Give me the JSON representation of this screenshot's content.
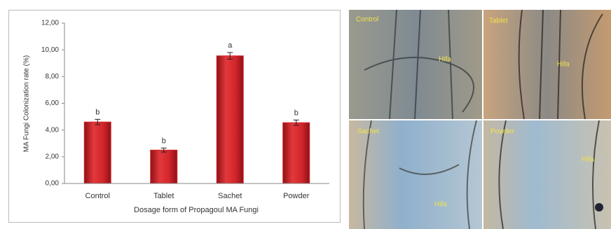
{
  "chart_data": {
    "type": "bar",
    "y_label": "MA Fungi Colonization rate   (%)",
    "x_label": "Dosage form of Propagoul MA Fungi",
    "categories": [
      "Control",
      "Tablet",
      "Sachet",
      "Powder"
    ],
    "values": [
      4.6,
      2.5,
      9.55,
      4.55
    ],
    "errors": [
      0.2,
      0.15,
      0.25,
      0.2
    ],
    "annotations": [
      "b",
      "b",
      "a",
      "b"
    ],
    "color": "#d3262b",
    "ylim": [
      0,
      12
    ],
    "yticks": [
      {
        "value": 0,
        "label": "0,00"
      },
      {
        "value": 2,
        "label": "2,00"
      },
      {
        "value": 4,
        "label": "4,00"
      },
      {
        "value": 6,
        "label": "6,00"
      },
      {
        "value": 8,
        "label": "8,00"
      },
      {
        "value": 10,
        "label": "10,00"
      },
      {
        "value": 12,
        "label": "12,00"
      }
    ]
  },
  "micrographs": {
    "panels": [
      {
        "label": "Control",
        "annotation": "Hifa"
      },
      {
        "label": "Tablet",
        "annotation": "Hifa"
      },
      {
        "label": "Sachet",
        "annotation": "Hifa"
      },
      {
        "label": "Powder",
        "annotation": "Hifa"
      }
    ]
  }
}
